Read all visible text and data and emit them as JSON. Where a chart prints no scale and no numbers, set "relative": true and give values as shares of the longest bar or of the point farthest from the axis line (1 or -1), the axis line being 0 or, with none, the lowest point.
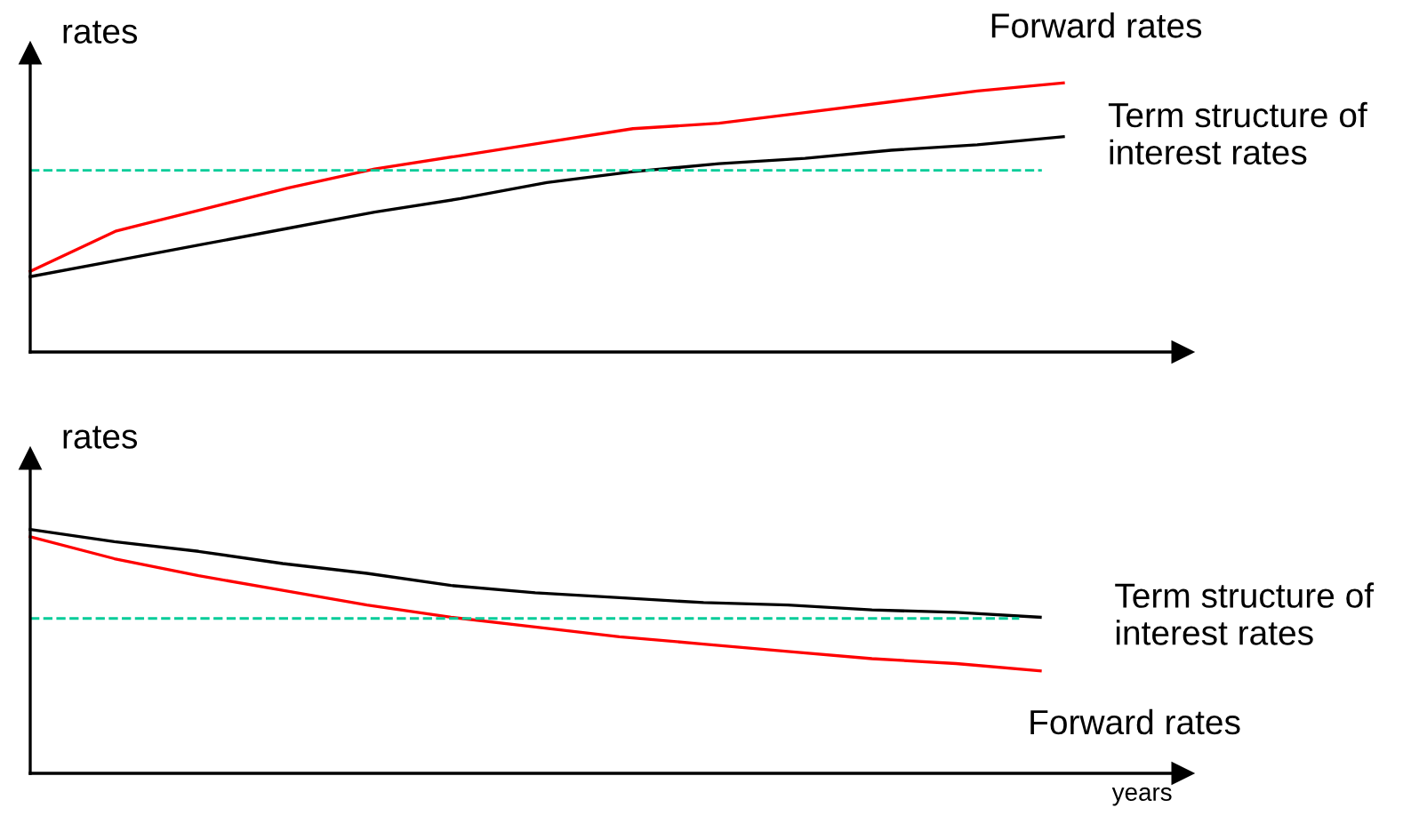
{
  "chart_data": [
    {
      "type": "line",
      "relative": true,
      "ylabel": "rates",
      "legend": false,
      "line_style": "solid",
      "marker": "none",
      "categories": [
        null,
        null,
        null,
        null,
        null,
        null,
        null,
        null,
        null,
        null,
        null,
        null,
        null
      ],
      "series": [
        {
          "name": "Forward rates",
          "color": "#ff0000",
          "values": [
            0.3,
            0.45,
            0.53,
            0.61,
            0.68,
            0.73,
            0.78,
            0.83,
            0.85,
            0.89,
            0.93,
            0.97,
            1.0
          ]
        },
        {
          "name": "Term structure of\ninterest rates",
          "color": "#000000",
          "values": [
            0.28,
            0.34,
            0.4,
            0.46,
            0.52,
            0.57,
            0.63,
            0.67,
            0.7,
            0.72,
            0.75,
            0.77,
            0.8
          ]
        }
      ],
      "ref_lines": [
        {
          "axis": "y",
          "value": 0.675,
          "color": "#00cc99",
          "line_style": "dashed"
        }
      ]
    },
    {
      "type": "line",
      "relative": true,
      "ylabel": "rates",
      "xlabel": "years",
      "legend": false,
      "line_style": "solid",
      "marker": "none",
      "categories": [
        null,
        null,
        null,
        null,
        null,
        null,
        null,
        null,
        null,
        null,
        null,
        null,
        null
      ],
      "series": [
        {
          "name": "Term structure of\ninterest rates",
          "color": "#000000",
          "values": [
            1.0,
            0.95,
            0.91,
            0.86,
            0.82,
            0.77,
            0.74,
            0.72,
            0.7,
            0.69,
            0.67,
            0.66,
            0.64
          ]
        },
        {
          "name": "Forward rates",
          "color": "#ff0000",
          "values": [
            0.97,
            0.88,
            0.81,
            0.75,
            0.69,
            0.64,
            0.6,
            0.56,
            0.53,
            0.5,
            0.47,
            0.45,
            0.42
          ]
        }
      ],
      "ref_lines": [
        {
          "axis": "y",
          "value": 0.635,
          "color": "#00cc99",
          "line_style": "dashed"
        }
      ]
    }
  ]
}
